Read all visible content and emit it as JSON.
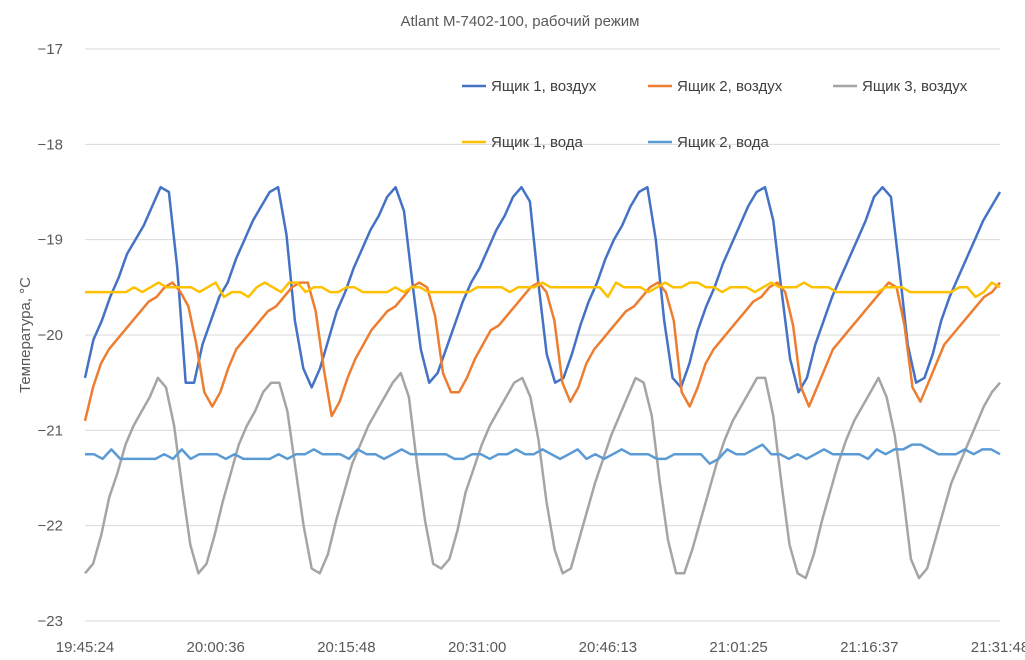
{
  "chart_data": {
    "type": "line",
    "title": "Atlant M-7402-100, рабочий режим",
    "ylabel": "Температура, °C",
    "xlabel": "",
    "ylim": [
      -23,
      -17
    ],
    "yticks": [
      -17,
      -18,
      -19,
      -20,
      -21,
      -22,
      -23
    ],
    "x_ticks": [
      "19:45:24",
      "20:00:36",
      "20:15:48",
      "20:31:00",
      "20:46:13",
      "21:01:25",
      "21:16:37",
      "21:31:48"
    ],
    "grid": "horizontal",
    "legend_position": "top-right",
    "series": [
      {
        "name": "Ящик 1, воздух",
        "color": "#4472C4",
        "values": [
          -20.45,
          -20.05,
          -19.85,
          -19.6,
          -19.4,
          -19.15,
          -19.0,
          -18.85,
          -18.65,
          -18.45,
          -18.5,
          -19.3,
          -20.5,
          -20.5,
          -20.1,
          -19.85,
          -19.6,
          -19.45,
          -19.2,
          -19.0,
          -18.8,
          -18.65,
          -18.5,
          -18.45,
          -18.95,
          -19.85,
          -20.35,
          -20.55,
          -20.35,
          -20.05,
          -19.75,
          -19.55,
          -19.3,
          -19.1,
          -18.9,
          -18.75,
          -18.55,
          -18.45,
          -18.7,
          -19.45,
          -20.15,
          -20.5,
          -20.4,
          -20.15,
          -19.9,
          -19.65,
          -19.45,
          -19.3,
          -19.1,
          -18.9,
          -18.75,
          -18.55,
          -18.45,
          -18.6,
          -19.45,
          -20.2,
          -20.5,
          -20.45,
          -20.2,
          -19.9,
          -19.65,
          -19.45,
          -19.2,
          -19.0,
          -18.85,
          -18.65,
          -18.5,
          -18.45,
          -19.0,
          -19.85,
          -20.45,
          -20.55,
          -20.3,
          -19.95,
          -19.7,
          -19.5,
          -19.25,
          -19.05,
          -18.85,
          -18.65,
          -18.5,
          -18.45,
          -18.8,
          -19.55,
          -20.25,
          -20.6,
          -20.45,
          -20.1,
          -19.85,
          -19.6,
          -19.4,
          -19.2,
          -19.0,
          -18.8,
          -18.55,
          -18.45,
          -18.55,
          -19.3,
          -20.1,
          -20.5,
          -20.45,
          -20.2,
          -19.85,
          -19.6,
          -19.4,
          -19.2,
          -19.0,
          -18.8,
          -18.65,
          -18.5
        ]
      },
      {
        "name": "Ящик 2, воздух",
        "color": "#ED7D31",
        "values": [
          -20.9,
          -20.55,
          -20.3,
          -20.15,
          -20.05,
          -19.95,
          -19.85,
          -19.75,
          -19.65,
          -19.6,
          -19.5,
          -19.45,
          -19.55,
          -19.7,
          -20.1,
          -20.6,
          -20.75,
          -20.6,
          -20.35,
          -20.15,
          -20.05,
          -19.95,
          -19.85,
          -19.75,
          -19.7,
          -19.6,
          -19.5,
          -19.45,
          -19.45,
          -19.75,
          -20.35,
          -20.85,
          -20.7,
          -20.45,
          -20.25,
          -20.1,
          -19.95,
          -19.85,
          -19.75,
          -19.7,
          -19.6,
          -19.5,
          -19.45,
          -19.5,
          -19.8,
          -20.4,
          -20.6,
          -20.6,
          -20.45,
          -20.25,
          -20.1,
          -19.95,
          -19.9,
          -19.8,
          -19.7,
          -19.6,
          -19.5,
          -19.45,
          -19.55,
          -19.85,
          -20.5,
          -20.7,
          -20.55,
          -20.3,
          -20.15,
          -20.05,
          -19.95,
          -19.85,
          -19.75,
          -19.7,
          -19.6,
          -19.5,
          -19.45,
          -19.55,
          -19.85,
          -20.6,
          -20.75,
          -20.55,
          -20.3,
          -20.15,
          -20.05,
          -19.95,
          -19.85,
          -19.75,
          -19.65,
          -19.6,
          -19.5,
          -19.45,
          -19.55,
          -19.9,
          -20.55,
          -20.75,
          -20.55,
          -20.35,
          -20.15,
          -20.05,
          -19.95,
          -19.85,
          -19.75,
          -19.65,
          -19.55,
          -19.45,
          -19.5,
          -19.9,
          -20.55,
          -20.7,
          -20.5,
          -20.3,
          -20.1,
          -20.0,
          -19.9,
          -19.8,
          -19.7,
          -19.6,
          -19.55,
          -19.45
        ]
      },
      {
        "name": "Ящик 3, воздух",
        "color": "#A5A5A5",
        "values": [
          -22.5,
          -22.4,
          -22.1,
          -21.7,
          -21.45,
          -21.15,
          -20.95,
          -20.8,
          -20.65,
          -20.45,
          -20.55,
          -20.95,
          -21.6,
          -22.2,
          -22.5,
          -22.4,
          -22.1,
          -21.75,
          -21.45,
          -21.15,
          -20.95,
          -20.8,
          -20.6,
          -20.5,
          -20.5,
          -20.8,
          -21.4,
          -22.0,
          -22.45,
          -22.5,
          -22.3,
          -21.95,
          -21.65,
          -21.35,
          -21.15,
          -20.95,
          -20.8,
          -20.65,
          -20.5,
          -20.4,
          -20.65,
          -21.35,
          -21.95,
          -22.4,
          -22.45,
          -22.35,
          -22.05,
          -21.65,
          -21.4,
          -21.15,
          -20.95,
          -20.8,
          -20.65,
          -20.5,
          -20.45,
          -20.65,
          -21.1,
          -21.75,
          -22.25,
          -22.5,
          -22.45,
          -22.15,
          -21.85,
          -21.55,
          -21.3,
          -21.05,
          -20.85,
          -20.65,
          -20.45,
          -20.5,
          -20.85,
          -21.55,
          -22.15,
          -22.5,
          -22.5,
          -22.25,
          -21.95,
          -21.65,
          -21.35,
          -21.1,
          -20.9,
          -20.75,
          -20.6,
          -20.45,
          -20.45,
          -20.85,
          -21.55,
          -22.2,
          -22.5,
          -22.55,
          -22.3,
          -21.95,
          -21.65,
          -21.35,
          -21.1,
          -20.9,
          -20.75,
          -20.6,
          -20.45,
          -20.65,
          -21.05,
          -21.65,
          -22.35,
          -22.55,
          -22.45,
          -22.15,
          -21.85,
          -21.55,
          -21.35,
          -21.15,
          -20.95,
          -20.75,
          -20.6,
          -20.5
        ]
      },
      {
        "name": "Ящик 1, вода",
        "color": "#FFC000",
        "values": [
          -19.55,
          -19.55,
          -19.55,
          -19.55,
          -19.55,
          -19.55,
          -19.5,
          -19.55,
          -19.5,
          -19.45,
          -19.5,
          -19.5,
          -19.5,
          -19.5,
          -19.55,
          -19.5,
          -19.45,
          -19.6,
          -19.55,
          -19.55,
          -19.6,
          -19.5,
          -19.45,
          -19.5,
          -19.55,
          -19.45,
          -19.45,
          -19.55,
          -19.5,
          -19.5,
          -19.55,
          -19.55,
          -19.5,
          -19.5,
          -19.55,
          -19.55,
          -19.55,
          -19.55,
          -19.5,
          -19.55,
          -19.5,
          -19.5,
          -19.55,
          -19.55,
          -19.55,
          -19.55,
          -19.55,
          -19.55,
          -19.5,
          -19.5,
          -19.5,
          -19.5,
          -19.55,
          -19.5,
          -19.5,
          -19.5,
          -19.45,
          -19.5,
          -19.5,
          -19.5,
          -19.5,
          -19.5,
          -19.5,
          -19.5,
          -19.6,
          -19.45,
          -19.5,
          -19.5,
          -19.5,
          -19.55,
          -19.5,
          -19.45,
          -19.5,
          -19.5,
          -19.45,
          -19.45,
          -19.5,
          -19.5,
          -19.55,
          -19.5,
          -19.5,
          -19.5,
          -19.55,
          -19.5,
          -19.45,
          -19.5,
          -19.5,
          -19.5,
          -19.45,
          -19.5,
          -19.5,
          -19.5,
          -19.55,
          -19.55,
          -19.55,
          -19.55,
          -19.55,
          -19.55,
          -19.5,
          -19.5,
          -19.5,
          -19.55,
          -19.55,
          -19.55,
          -19.55,
          -19.55,
          -19.55,
          -19.5,
          -19.5,
          -19.6,
          -19.55,
          -19.45,
          -19.5
        ]
      },
      {
        "name": "Ящик 2, вода",
        "color": "#5B9BD5",
        "values": [
          -21.25,
          -21.25,
          -21.3,
          -21.2,
          -21.3,
          -21.3,
          -21.3,
          -21.3,
          -21.3,
          -21.25,
          -21.3,
          -21.2,
          -21.3,
          -21.25,
          -21.25,
          -21.25,
          -21.3,
          -21.25,
          -21.3,
          -21.3,
          -21.3,
          -21.3,
          -21.25,
          -21.3,
          -21.25,
          -21.25,
          -21.2,
          -21.25,
          -21.25,
          -21.25,
          -21.3,
          -21.2,
          -21.25,
          -21.25,
          -21.3,
          -21.25,
          -21.2,
          -21.25,
          -21.25,
          -21.25,
          -21.25,
          -21.25,
          -21.3,
          -21.3,
          -21.25,
          -21.25,
          -21.3,
          -21.25,
          -21.25,
          -21.2,
          -21.25,
          -21.25,
          -21.2,
          -21.25,
          -21.3,
          -21.25,
          -21.2,
          -21.3,
          -21.25,
          -21.3,
          -21.25,
          -21.2,
          -21.25,
          -21.25,
          -21.25,
          -21.3,
          -21.3,
          -21.25,
          -21.25,
          -21.25,
          -21.25,
          -21.35,
          -21.3,
          -21.2,
          -21.25,
          -21.25,
          -21.2,
          -21.15,
          -21.25,
          -21.25,
          -21.3,
          -21.25,
          -21.3,
          -21.25,
          -21.2,
          -21.25,
          -21.25,
          -21.25,
          -21.25,
          -21.3,
          -21.2,
          -21.25,
          -21.2,
          -21.2,
          -21.15,
          -21.15,
          -21.2,
          -21.25,
          -21.25,
          -21.25,
          -21.2,
          -21.25,
          -21.2,
          -21.2,
          -21.25
        ]
      }
    ]
  }
}
